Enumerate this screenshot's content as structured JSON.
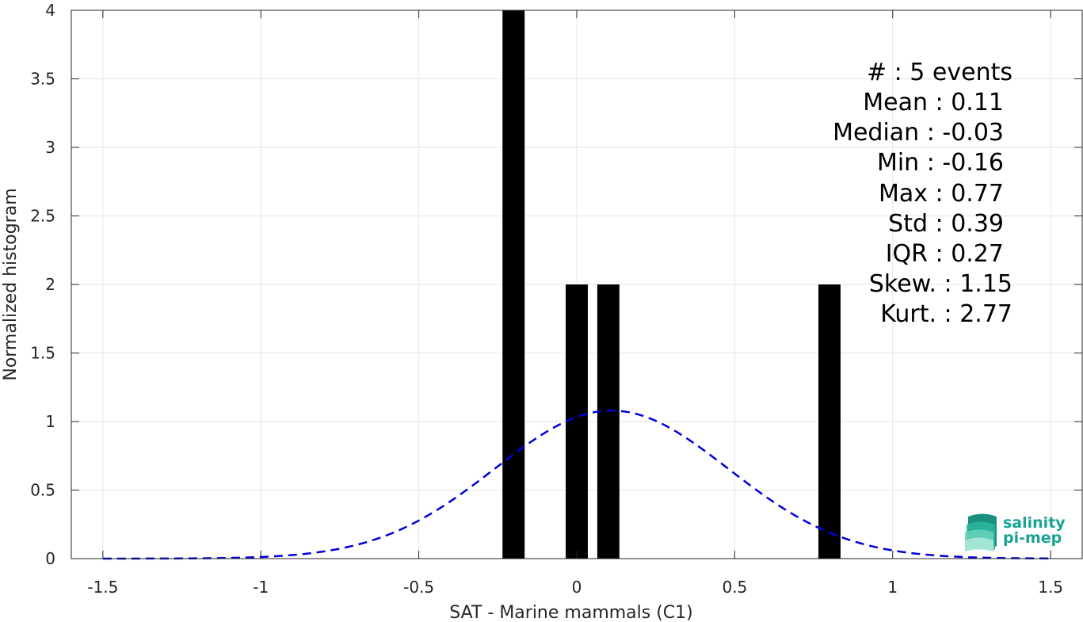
{
  "chart_data": {
    "type": "bar",
    "xlabel": "SAT - Marine mammals (C1)",
    "ylabel": "Normalized histogram",
    "xlim": [
      -1.6,
      1.6
    ],
    "ylim": [
      0,
      4
    ],
    "xticks": [
      -1.5,
      -1,
      -0.5,
      0,
      0.5,
      1,
      1.5
    ],
    "xtick_labels": [
      "-1.5",
      "-1",
      "-0.5",
      "0",
      "0.5",
      "1",
      "1.5"
    ],
    "yticks": [
      0,
      0.5,
      1,
      1.5,
      2,
      2.5,
      3,
      3.5,
      4
    ],
    "ytick_labels": [
      "0",
      "0.5",
      "1",
      "1.5",
      "2",
      "2.5",
      "3",
      "3.5",
      "4"
    ],
    "grid": true,
    "bar_color": "#000000",
    "bars": [
      {
        "center": -0.2,
        "width": 0.07,
        "value": 4
      },
      {
        "center": 0.0,
        "width": 0.07,
        "value": 2
      },
      {
        "center": 0.1,
        "width": 0.07,
        "value": 2
      },
      {
        "center": 0.8,
        "width": 0.07,
        "value": 2
      }
    ],
    "fit_curve": {
      "style": "dashed",
      "color": "#0000dd",
      "x_range": [
        -1.5,
        1.5
      ],
      "mean": 0.11,
      "std": 0.37,
      "peak": 1.08
    },
    "annotations": [
      "#  : 5 events",
      "Mean : 0.11",
      "Median : -0.03",
      "Min : -0.16",
      "Max : 0.77",
      "Std : 0.39",
      "IQR : 0.27",
      "Skew. : 1.15",
      "Kurt. : 2.77"
    ]
  },
  "logo": {
    "line1": "salinity",
    "line2": "pi-mep",
    "color": "#1aa394"
  }
}
